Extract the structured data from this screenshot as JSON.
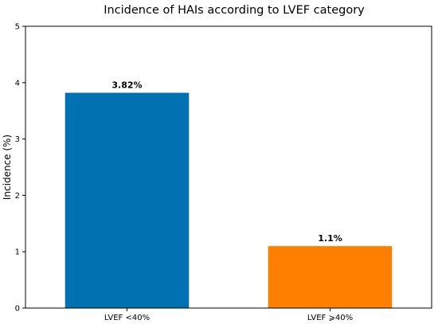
{
  "chart_data": {
    "type": "bar",
    "title": "Incidence of HAIs according to LVEF category",
    "xlabel": "",
    "ylabel": "Incidence (%)",
    "ylim": [
      0,
      5
    ],
    "yticks": [
      "0",
      "1",
      "2",
      "3",
      "4",
      "5"
    ],
    "categories": [
      "LVEF <40%",
      "LVEF ⩾40%"
    ],
    "values": [
      3.82,
      1.1
    ],
    "data_labels": [
      "3.82%",
      "1.1%"
    ],
    "colors": [
      "#0072b2",
      "#ff8000"
    ],
    "grid": false,
    "legend": false
  }
}
